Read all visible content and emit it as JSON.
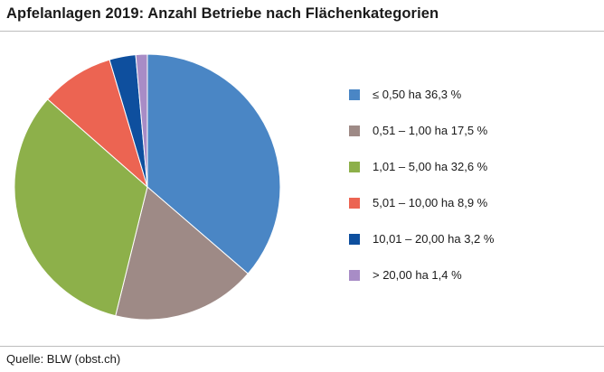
{
  "title": "Apfelanlagen 2019: Anzahl Betriebe nach Flächenkategorien",
  "source": "Quelle: BLW (obst.ch)",
  "chart_data": {
    "type": "pie",
    "title": "Apfelanlagen 2019: Anzahl Betriebe nach Flächenkategorien",
    "start_angle": "12 o'clock",
    "direction": "clockwise",
    "legend_position": "right",
    "slices": [
      {
        "label": "≤ 0,50 ha 36,3 %",
        "category": "≤ 0,50 ha",
        "value": 36.3,
        "color": "#4a86c5"
      },
      {
        "label": "0,51 – 1,00 ha 17,5 %",
        "category": "0,51 – 1,00 ha",
        "value": 17.5,
        "color": "#9e8a86"
      },
      {
        "label": "1,01 – 5,00 ha 32,6 %",
        "category": "1,01 – 5,00 ha",
        "value": 32.6,
        "color": "#8db04a"
      },
      {
        "label": "5,01 – 10,00 ha 8,9 %",
        "category": "5,01 – 10,00 ha",
        "value": 8.9,
        "color": "#ec6452"
      },
      {
        "label": "10,01 – 20,00 ha 3,2 %",
        "category": "10,01 – 20,00 ha",
        "value": 3.2,
        "color": "#0e4f9e"
      },
      {
        "label": "> 20,00 ha 1,4 %",
        "category": "> 20,00 ha",
        "value": 1.4,
        "color": "#a88cc6"
      }
    ]
  }
}
